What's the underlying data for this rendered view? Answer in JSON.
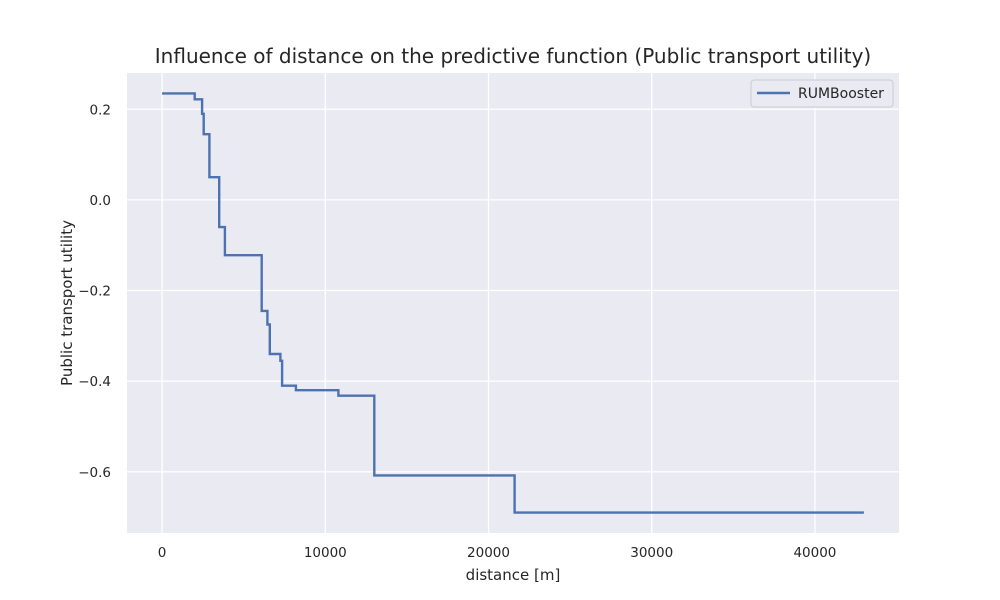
{
  "chart_data": {
    "type": "line",
    "title": "Influence of distance on the predictive function (Public transport utility)",
    "xlabel": "distance [m]",
    "ylabel": "Public transport utility",
    "xlim": [
      -2150,
      45150
    ],
    "ylim": [
      -0.735,
      0.28
    ],
    "xticks": [
      0,
      10000,
      20000,
      30000,
      40000
    ],
    "yticks": [
      0.2,
      0.0,
      -0.2,
      -0.4,
      -0.6
    ],
    "xtick_labels": [
      "0",
      "10000",
      "20000",
      "30000",
      "40000"
    ],
    "ytick_labels": [
      "0.2",
      "0.0",
      "−0.2",
      "−0.4",
      "−0.6"
    ],
    "grid": true,
    "legend_position": "top-right",
    "series": [
      {
        "name": "RUMBooster",
        "color": "#4c72b0",
        "step": true,
        "x": [
          0,
          2000,
          2450,
          2550,
          2900,
          3500,
          3850,
          6100,
          6450,
          6600,
          7250,
          7350,
          8200,
          10800,
          13000,
          21600,
          43000
        ],
        "y": [
          0.235,
          0.222,
          0.19,
          0.145,
          0.05,
          -0.06,
          -0.122,
          -0.245,
          -0.275,
          -0.34,
          -0.355,
          -0.41,
          -0.42,
          -0.432,
          -0.608,
          -0.69,
          -0.69
        ]
      }
    ]
  }
}
